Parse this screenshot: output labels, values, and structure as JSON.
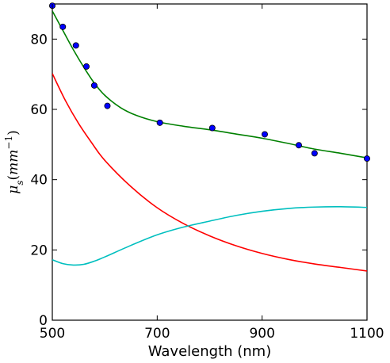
{
  "chart_data": {
    "type": "line",
    "title": "",
    "xlabel": "Wavelength (nm)",
    "ylabel": {
      "base": "μ",
      "subscript": "s",
      "open": "(",
      "unit": "mm",
      "superscript": "−1",
      "close": ")"
    },
    "xlim": [
      500,
      1100
    ],
    "ylim": [
      0,
      90
    ],
    "xticks": [
      500,
      700,
      900,
      1100
    ],
    "yticks": [
      0,
      20,
      40,
      60,
      80
    ],
    "grid": false,
    "legend": "none",
    "colors": {
      "green": "#008000",
      "red": "#ff0000",
      "cyan": "#00bfbf",
      "points": "#0000ff"
    },
    "series": [
      {
        "kind": "scatter",
        "color": "#0000ff",
        "x": [
          500,
          520,
          545,
          565,
          580,
          605,
          705,
          805,
          905,
          970,
          1000,
          1100
        ],
        "y": [
          89.5,
          83.5,
          78.2,
          72.2,
          66.8,
          61.0,
          56.2,
          54.7,
          52.9,
          49.8,
          47.5,
          46.0
        ]
      },
      {
        "kind": "line",
        "color": "#008000",
        "x": [
          500,
          520,
          540,
          560,
          580,
          600,
          630,
          660,
          700,
          750,
          800,
          850,
          900,
          950,
          1000,
          1050,
          1100
        ],
        "y": [
          88.0,
          82.5,
          77.0,
          72.0,
          67.5,
          64.0,
          60.5,
          58.3,
          56.5,
          55.2,
          54.2,
          53.0,
          51.8,
          50.3,
          48.7,
          47.5,
          46.2
        ]
      },
      {
        "kind": "line",
        "color": "#ff0000",
        "x": [
          500,
          525,
          550,
          575,
          600,
          650,
          700,
          750,
          800,
          850,
          900,
          950,
          1000,
          1050,
          1100
        ],
        "y": [
          70.2,
          62.5,
          56.0,
          50.5,
          45.5,
          38.0,
          32.0,
          27.5,
          24.0,
          21.2,
          19.0,
          17.3,
          16.0,
          15.0,
          14.0
        ]
      },
      {
        "kind": "line",
        "color": "#00bfbf",
        "x": [
          500,
          520,
          540,
          560,
          580,
          600,
          650,
          700,
          750,
          800,
          850,
          900,
          950,
          1000,
          1050,
          1100
        ],
        "y": [
          17.2,
          16.1,
          15.7,
          15.9,
          16.8,
          18.0,
          21.3,
          24.3,
          26.5,
          28.2,
          29.8,
          31.0,
          31.8,
          32.2,
          32.3,
          32.1
        ]
      }
    ]
  }
}
